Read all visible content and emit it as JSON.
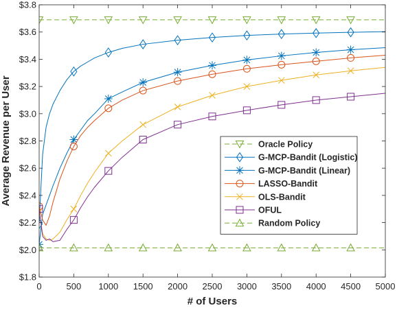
{
  "chart_data": {
    "type": "line",
    "xlabel": "# of Users",
    "ylabel": "Average Revenue per User",
    "xlim": [
      0,
      5000
    ],
    "ylim": [
      1.8,
      3.8
    ],
    "xticks": [
      0,
      500,
      1000,
      1500,
      2000,
      2500,
      3000,
      3500,
      4000,
      4500,
      5000
    ],
    "yticks": [
      1.8,
      2.0,
      2.2,
      2.4,
      2.6,
      2.8,
      3.0,
      3.2,
      3.4,
      3.6,
      3.8
    ],
    "ytick_labels": [
      "$1.8",
      "$2.0",
      "$2.2",
      "$2.4",
      "$2.6",
      "$2.8",
      "$3.0",
      "$3.2",
      "$3.4",
      "$3.6",
      "$3.8"
    ],
    "grid": false,
    "legend_position": "center-right",
    "series": [
      {
        "name": "Oracle Policy",
        "color": "#77ac30",
        "dash": "dashed",
        "marker": "triangle-down",
        "x": [
          0,
          5000
        ],
        "y": [
          3.69,
          3.69
        ],
        "marker_x": [
          0,
          500,
          1000,
          1500,
          2000,
          2500,
          3000,
          3500,
          4000,
          4500
        ]
      },
      {
        "name": "G-MCP-Bandit (Logistic)",
        "color": "#0072bd",
        "dash": "solid",
        "marker": "diamond",
        "x": [
          0,
          25,
          50,
          100,
          150,
          200,
          300,
          400,
          500,
          600,
          700,
          800,
          1000,
          1200,
          1500,
          2000,
          2500,
          3000,
          3500,
          4000,
          4500,
          5000
        ],
        "y": [
          2.19,
          2.45,
          2.7,
          2.9,
          3.0,
          3.07,
          3.17,
          3.25,
          3.31,
          3.35,
          3.38,
          3.41,
          3.45,
          3.48,
          3.51,
          3.54,
          3.56,
          3.575,
          3.585,
          3.592,
          3.598,
          3.603
        ],
        "marker_x": [
          0,
          500,
          1000,
          1500,
          2000,
          2500,
          3000,
          3500,
          4000,
          4500
        ]
      },
      {
        "name": "G-MCP-Bandit (Linear)",
        "color": "#0072bd",
        "dash": "solid",
        "marker": "asterisk",
        "x": [
          0,
          25,
          50,
          100,
          150,
          200,
          300,
          400,
          500,
          600,
          700,
          800,
          1000,
          1200,
          1500,
          2000,
          2500,
          3000,
          3500,
          4000,
          4500,
          5000
        ],
        "y": [
          2.04,
          2.15,
          2.26,
          2.33,
          2.4,
          2.47,
          2.6,
          2.71,
          2.81,
          2.88,
          2.95,
          3.0,
          3.11,
          3.16,
          3.23,
          3.305,
          3.355,
          3.395,
          3.425,
          3.45,
          3.47,
          3.485
        ],
        "marker_x": [
          0,
          500,
          1000,
          1500,
          2000,
          2500,
          3000,
          3500,
          4000,
          4500
        ]
      },
      {
        "name": "LASSO-Bandit",
        "color": "#d95319",
        "dash": "solid",
        "marker": "circle",
        "x": [
          0,
          50,
          100,
          150,
          200,
          300,
          400,
          500,
          600,
          700,
          800,
          1000,
          1200,
          1500,
          2000,
          2500,
          3000,
          3500,
          4000,
          4500,
          5000
        ],
        "y": [
          2.32,
          2.22,
          2.18,
          2.25,
          2.35,
          2.52,
          2.65,
          2.76,
          2.84,
          2.9,
          2.95,
          3.04,
          3.1,
          3.17,
          3.24,
          3.29,
          3.33,
          3.36,
          3.385,
          3.41,
          3.43
        ],
        "marker_x": [
          0,
          500,
          1000,
          1500,
          2000,
          2500,
          3000,
          3500,
          4000,
          4500
        ]
      },
      {
        "name": "OLS-Bandit",
        "color": "#edb120",
        "dash": "solid",
        "marker": "cross",
        "x": [
          0,
          50,
          100,
          150,
          200,
          300,
          400,
          500,
          600,
          700,
          800,
          1000,
          1200,
          1500,
          2000,
          2500,
          3000,
          3500,
          4000,
          4500,
          5000
        ],
        "y": [
          2.28,
          2.12,
          2.08,
          2.07,
          2.08,
          2.13,
          2.22,
          2.3,
          2.4,
          2.49,
          2.57,
          2.71,
          2.8,
          2.92,
          3.05,
          3.135,
          3.2,
          3.245,
          3.285,
          3.315,
          3.34
        ],
        "marker_x": [
          0,
          500,
          1000,
          1500,
          2000,
          2500,
          3000,
          3500,
          4000,
          4500
        ]
      },
      {
        "name": "OFUL",
        "color": "#7e2f8e",
        "dash": "solid",
        "marker": "square",
        "x": [
          0,
          50,
          100,
          150,
          200,
          300,
          400,
          500,
          600,
          700,
          800,
          1000,
          1200,
          1500,
          2000,
          2500,
          3000,
          3500,
          4000,
          4500,
          5000
        ],
        "y": [
          2.3,
          2.1,
          2.07,
          2.08,
          2.06,
          2.07,
          2.15,
          2.22,
          2.31,
          2.39,
          2.46,
          2.58,
          2.68,
          2.81,
          2.92,
          2.98,
          3.025,
          3.065,
          3.1,
          3.125,
          3.15
        ],
        "marker_x": [
          0,
          500,
          1000,
          1500,
          2000,
          2500,
          3000,
          3500,
          4000,
          4500
        ]
      },
      {
        "name": "Random Policy",
        "color": "#77ac30",
        "dash": "dashed",
        "marker": "triangle-up",
        "x": [
          0,
          5000
        ],
        "y": [
          2.015,
          2.015
        ],
        "marker_x": [
          0,
          500,
          1000,
          1500,
          2000,
          2500,
          3000,
          3500,
          4000,
          4500
        ]
      }
    ]
  }
}
